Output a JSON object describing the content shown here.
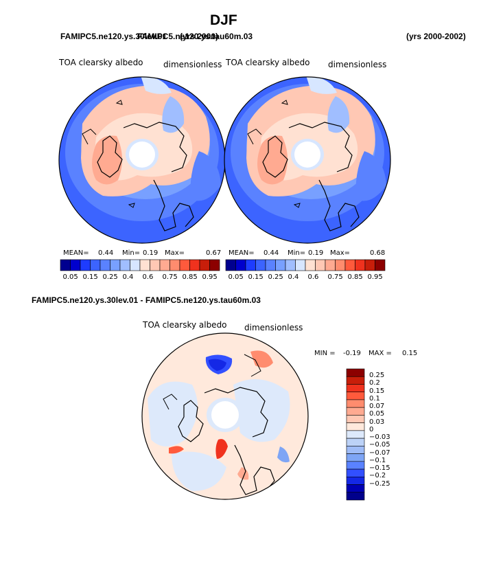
{
  "figure": {
    "title": "DJF",
    "top_left_case": "FAMIPC5.ne120.ys.30lev.01",
    "top_right_case": "FAMIPC5.ne120.ys.tau60m.03",
    "top_left_years": "(yrs 2000)",
    "top_right_years": "(yrs 2000-2002)",
    "diff_case": "FAMIPC5.ne120.ys.30lev.01 - FAMIPC5.ne120.ys.tau60m.03"
  },
  "chart_data": [
    {
      "type": "heatmap",
      "projection": "north polar stereographic",
      "variable": "TOA clearsky albedo",
      "units": "dimensionless",
      "stats": {
        "mean_label": "MEAN=",
        "mean": "0.44",
        "min_label": "Min=",
        "min": "0.19",
        "max_label": "Max=",
        "max": "0.67"
      },
      "colorbar": {
        "orientation": "horizontal",
        "colors": [
          "#00008f",
          "#0000cd",
          "#1e3cff",
          "#3c64ff",
          "#5a82ff",
          "#78a0ff",
          "#a0beff",
          "#d7e6ff",
          "#ffe1d2",
          "#ffc8b4",
          "#ffaa91",
          "#ff8c6e",
          "#ff5a3c",
          "#f0321e",
          "#c81e0a",
          "#8c0000"
        ],
        "tick_labels": [
          "0.05",
          "0.15",
          "0.25",
          "0.4",
          "0.6",
          "0.75",
          "0.85",
          "0.95"
        ]
      }
    },
    {
      "type": "heatmap",
      "projection": "north polar stereographic",
      "variable": "TOA clearsky albedo",
      "units": "dimensionless",
      "stats": {
        "mean_label": "MEAN=",
        "mean": "0.44",
        "min_label": "Min=",
        "min": "0.19",
        "max_label": "Max=",
        "max": "0.68"
      },
      "colorbar": {
        "orientation": "horizontal",
        "colors": [
          "#00008f",
          "#0000cd",
          "#1e3cff",
          "#3c64ff",
          "#5a82ff",
          "#78a0ff",
          "#a0beff",
          "#d7e6ff",
          "#ffe1d2",
          "#ffc8b4",
          "#ffaa91",
          "#ff8c6e",
          "#ff5a3c",
          "#f0321e",
          "#c81e0a",
          "#8c0000"
        ],
        "tick_labels": [
          "0.05",
          "0.15",
          "0.25",
          "0.4",
          "0.6",
          "0.75",
          "0.85",
          "0.95"
        ]
      }
    },
    {
      "type": "heatmap",
      "projection": "north polar stereographic",
      "variable": "TOA clearsky albedo",
      "units": "dimensionless",
      "stats": {
        "min_label": "MIN =",
        "min": "-0.19",
        "max_label": "MAX =",
        "max": "0.15"
      },
      "colorbar": {
        "orientation": "vertical",
        "colors": [
          "#8c0000",
          "#c81e0a",
          "#f0321e",
          "#ff5a3c",
          "#ff8c6e",
          "#ffaa91",
          "#ffc8b4",
          "#ffe9dc",
          "#dde9fb",
          "#bcd2f7",
          "#9fbcf7",
          "#7ea5f5",
          "#5a82ff",
          "#3250ff",
          "#1428e6",
          "#0000b4",
          "#00008c"
        ],
        "tick_labels": [
          "0.25",
          "0.2",
          "0.15",
          "0.1",
          "0.07",
          "0.05",
          "0.03",
          "0",
          "−0.03",
          "−0.05",
          "−0.07",
          "−0.1",
          "−0.15",
          "−0.2",
          "−0.25"
        ]
      }
    }
  ]
}
